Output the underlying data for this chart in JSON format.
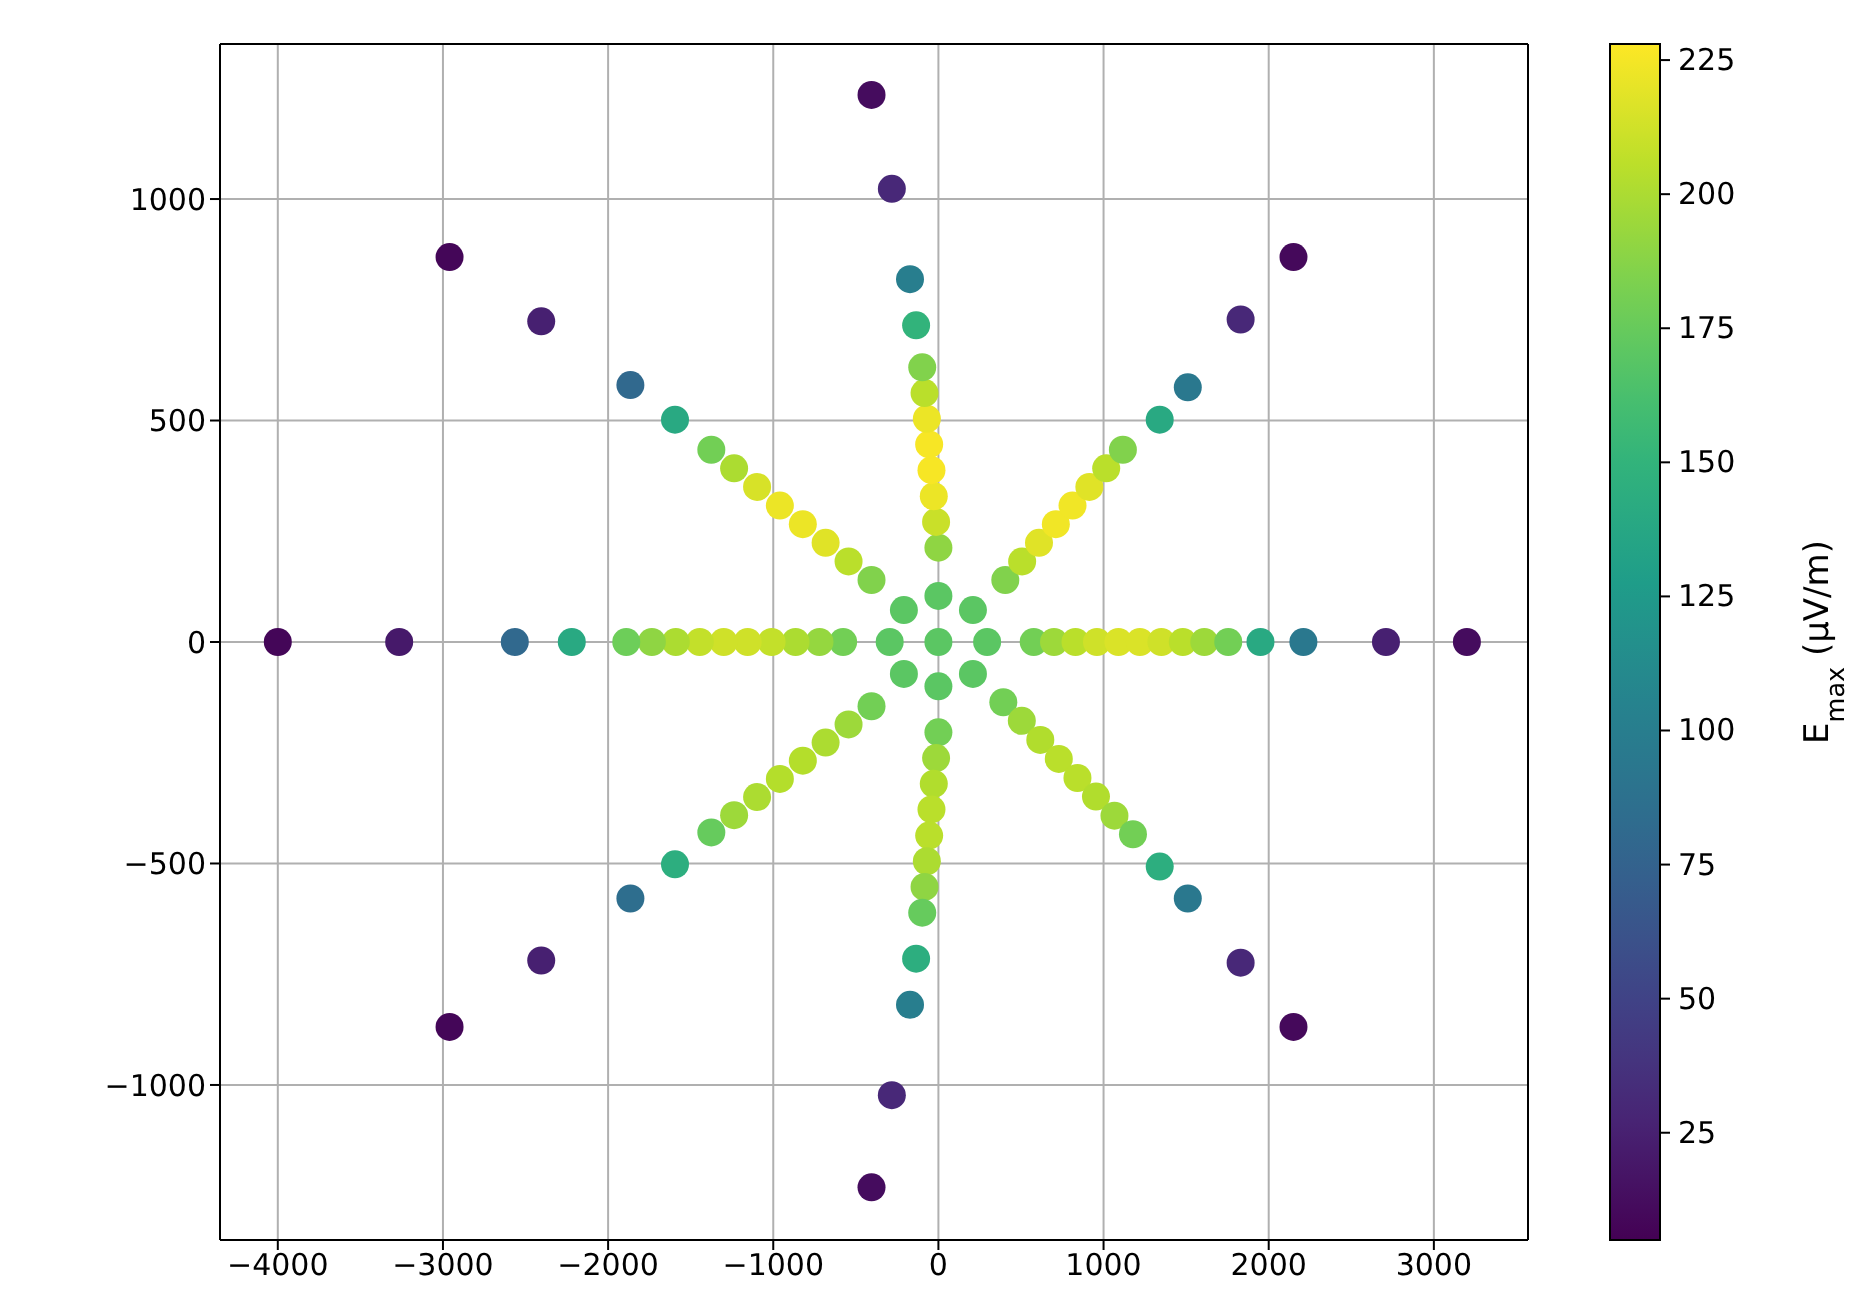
{
  "chart_data": {
    "type": "scatter",
    "marker": "circle",
    "grid": true,
    "xlim": [
      -4350,
      3570
    ],
    "xticks": [
      {
        "value": -4000,
        "label": "−4000"
      },
      {
        "value": -3000,
        "label": "−3000"
      },
      {
        "value": -2000,
        "label": "−2000"
      },
      {
        "value": -1000,
        "label": "−1000"
      },
      0,
      1000,
      2000,
      3000
    ],
    "ylim": [
      -1350,
      1350
    ],
    "yticks": [
      {
        "value": -1000,
        "label": "−1000"
      },
      {
        "value": -500,
        "label": "−500"
      },
      0,
      500,
      1000
    ],
    "clabel": "E$_{max}$ (μV/m)",
    "clim": [
      5,
      228
    ],
    "cticks": [
      25,
      50,
      75,
      100,
      125,
      150,
      175,
      200,
      225
    ],
    "x": [
      577,
      700,
      830,
      960,
      1090,
      1220,
      1350,
      1480,
      1610,
      1755,
      1950,
      2210,
      2710,
      3200,
      -577,
      -720,
      -865,
      -1010,
      -1155,
      -1300,
      -1445,
      -1590,
      -1735,
      -1890,
      -2220,
      -2565,
      -3265,
      -4000,
      405,
      507,
      609,
      711,
      812,
      914,
      1016,
      1117,
      1340,
      1510,
      1830,
      2150,
      -405,
      -544,
      -683,
      -821,
      -960,
      -1098,
      -1237,
      -1375,
      -1595,
      -1865,
      -2405,
      -2960,
      -405,
      -544,
      -683,
      -821,
      -960,
      -1098,
      -1237,
      -1375,
      -1595,
      -1865,
      -2405,
      -2960,
      393,
      505,
      617,
      729,
      842,
      954,
      1066,
      1178,
      1340,
      1510,
      1830,
      2150,
      0,
      -14,
      -28,
      -42,
      -56,
      -70,
      -84,
      -98,
      -135,
      -172,
      -282,
      -405,
      0,
      -14,
      -28,
      -42,
      -56,
      -70,
      -84,
      -98,
      -135,
      -172,
      -282,
      -405,
      0,
      0,
      209,
      295,
      209,
      0,
      -209,
      -295,
      -209
    ],
    "values": [
      0,
      0,
      0,
      0,
      0,
      0,
      0,
      0,
      0,
      0,
      0,
      0,
      0,
      0,
      0,
      0,
      0,
      0,
      0,
      0,
      0,
      0,
      0,
      0,
      0,
      0,
      0,
      0,
      140,
      182,
      224,
      266,
      308,
      350,
      392,
      434,
      502,
      575,
      728,
      869,
      140,
      182,
      224,
      266,
      308,
      350,
      392,
      434,
      502,
      580,
      724,
      869,
      -145,
      -186,
      -227,
      -268,
      -309,
      -350,
      -391,
      -430,
      -502,
      -579,
      -719,
      -869,
      -136,
      -178,
      -221,
      -264,
      -307,
      -349,
      -392,
      -434,
      -507,
      -579,
      -724,
      -869,
      213,
      271,
      329,
      388,
      446,
      504,
      562,
      620,
      715,
      819,
      1023,
      1235,
      -204,
      -262,
      -320,
      -378,
      -437,
      -495,
      -553,
      -611,
      -715,
      -819,
      -1023,
      -1231,
      0,
      104,
      72,
      0,
      -72,
      -100,
      -72,
      0,
      72
    ],
    "cvalues": [
      180,
      195,
      205,
      212,
      216,
      216,
      212,
      205,
      195,
      180,
      140,
      95,
      25,
      12,
      180,
      192,
      200,
      208,
      212,
      212,
      208,
      200,
      190,
      178,
      140,
      80,
      20,
      8,
      185,
      205,
      218,
      224,
      224,
      218,
      205,
      185,
      140,
      95,
      30,
      10,
      185,
      205,
      218,
      222,
      222,
      215,
      200,
      180,
      140,
      80,
      25,
      8,
      180,
      195,
      200,
      203,
      203,
      200,
      195,
      175,
      145,
      85,
      25,
      8,
      180,
      195,
      202,
      205,
      205,
      202,
      195,
      180,
      145,
      95,
      30,
      10,
      190,
      210,
      222,
      226,
      226,
      222,
      205,
      185,
      150,
      100,
      30,
      12,
      180,
      195,
      202,
      205,
      205,
      200,
      190,
      175,
      145,
      100,
      30,
      12,
      170,
      170,
      170,
      170,
      170,
      170,
      170,
      170,
      170
    ]
  }
}
